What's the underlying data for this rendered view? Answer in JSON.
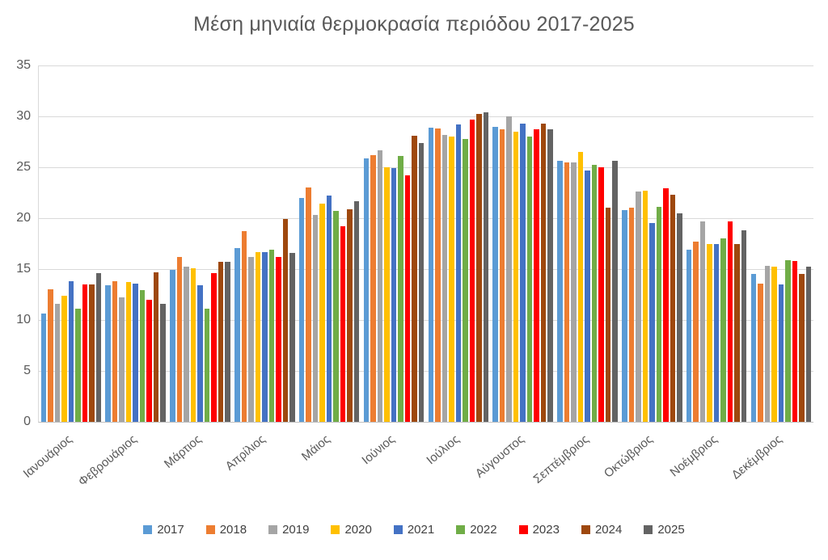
{
  "title": "Μέση μηνιαία θερμοκρασία περιόδου 2017-2025",
  "colors": {
    "title_text": "#595959",
    "axis_text": "#595959",
    "legend_text": "#404040",
    "gridline": "#d9d9d9",
    "axis_line": "#bfbfbf",
    "background": "#ffffff"
  },
  "chart_data": {
    "type": "bar",
    "title": "Μέση μηνιαία θερμοκρασία περιόδου 2017-2025",
    "xlabel": "",
    "ylabel": "",
    "ylim": [
      0,
      35
    ],
    "yticks": [
      0,
      5,
      10,
      15,
      20,
      25,
      30,
      35
    ],
    "grid": true,
    "legend_position": "bottom",
    "categories": [
      "Ιανουάριος",
      "Φεβρουάριος",
      "Μάρτιος",
      "Απρίλιος",
      "Μάιος",
      "Ιούνιος",
      "Ιούλιος",
      "Αύγουστος",
      "Σεπτέμβριος",
      "Οκτώβριος",
      "Νοέμβριος",
      "Δεκέμβριος"
    ],
    "series": [
      {
        "name": "2017",
        "color": "#5B9BD5",
        "values": [
          10.6,
          13.4,
          14.9,
          17.1,
          22.0,
          25.9,
          28.9,
          29.0,
          25.6,
          20.8,
          16.9,
          14.5
        ]
      },
      {
        "name": "2018",
        "color": "#ED7D31",
        "values": [
          13.0,
          13.8,
          16.2,
          18.7,
          23.0,
          26.2,
          28.8,
          28.7,
          25.5,
          21.0,
          17.7,
          13.6
        ]
      },
      {
        "name": "2019",
        "color": "#A5A5A5",
        "values": [
          11.6,
          12.2,
          15.2,
          16.2,
          20.3,
          26.7,
          28.2,
          30.0,
          25.5,
          22.6,
          19.7,
          15.3
        ]
      },
      {
        "name": "2020",
        "color": "#FFC000",
        "values": [
          12.4,
          13.7,
          15.1,
          16.7,
          21.4,
          25.0,
          28.0,
          28.5,
          26.5,
          22.7,
          17.5,
          15.2
        ]
      },
      {
        "name": "2021",
        "color": "#4472C4",
        "values": [
          13.8,
          13.6,
          13.4,
          16.7,
          22.2,
          24.9,
          29.2,
          29.3,
          24.7,
          19.5,
          17.5,
          13.5
        ]
      },
      {
        "name": "2022",
        "color": "#70AD47",
        "values": [
          11.1,
          12.9,
          11.1,
          16.9,
          20.7,
          26.1,
          27.8,
          28.0,
          25.2,
          21.1,
          18.0,
          15.9
        ]
      },
      {
        "name": "2023",
        "color": "#FF0000",
        "values": [
          13.5,
          12.0,
          14.6,
          16.2,
          19.2,
          24.2,
          29.7,
          28.7,
          25.0,
          22.9,
          19.7,
          15.8
        ]
      },
      {
        "name": "2024",
        "color": "#9E480E",
        "values": [
          13.5,
          14.7,
          15.7,
          19.9,
          20.9,
          28.1,
          30.2,
          29.3,
          21.0,
          22.3,
          17.5,
          14.5
        ]
      },
      {
        "name": "2025",
        "color": "#636363",
        "values": [
          14.6,
          11.6,
          15.7,
          16.6,
          21.7,
          27.4,
          30.4,
          28.7,
          25.6,
          20.5,
          18.8,
          15.2
        ]
      }
    ]
  }
}
